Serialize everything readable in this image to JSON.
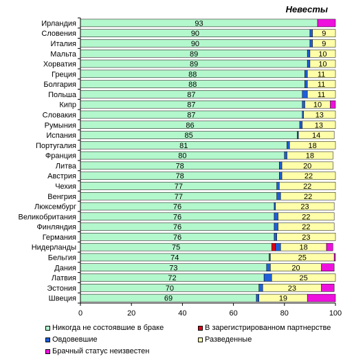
{
  "chart_data": {
    "type": "bar",
    "orientation": "horizontal",
    "stacked": true,
    "title": "Невесты",
    "xlim": [
      0,
      100
    ],
    "xticks": [
      0,
      20,
      40,
      60,
      80,
      100
    ],
    "grid": false,
    "legend_position": "bottom",
    "categories": [
      "Ирландия",
      "Словения",
      "Италия",
      "Мальта",
      "Хорватия",
      "Греция",
      "Болгария",
      "Польша",
      "Кипр",
      "Словакия",
      "Румыния",
      "Испания",
      "Португалия",
      "Франция",
      "Литва",
      "Австрия",
      "Чехия",
      "Венгрия",
      "Люксембург",
      "Великобритания",
      "Финляндия",
      "Германия",
      "Нидерланды",
      "Бельгия",
      "Дания",
      "Латвия",
      "Эстония",
      "Швеция"
    ],
    "series": [
      {
        "name": "Никогда не состоявшие в браке",
        "color": "#b3f7cc",
        "values": [
          93,
          90,
          90,
          89,
          89,
          88,
          88,
          87,
          87,
          87,
          86,
          85,
          81,
          80,
          78,
          78,
          77,
          77,
          76,
          76,
          76,
          76,
          75,
          74,
          73,
          72,
          70,
          69
        ],
        "labels": [
          "93",
          "90",
          "90",
          "89",
          "89",
          "88",
          "88",
          "87",
          "87",
          "87",
          "86",
          "85",
          "81",
          "80",
          "78",
          "78",
          "77",
          "77",
          "76",
          "76",
          "76",
          "76",
          "75",
          "74",
          "73",
          "72",
          "70",
          "69"
        ]
      },
      {
        "name": "В зарегистрированном партнерстве",
        "color": "#e0001b",
        "values": [
          0,
          0,
          0,
          0,
          0,
          0,
          0,
          0,
          0,
          0,
          0,
          0,
          0,
          0,
          0,
          0,
          0,
          0,
          0,
          0,
          0,
          0,
          1.5,
          0,
          0,
          0,
          0,
          0
        ],
        "labels": [
          "",
          "",
          "",
          "",
          "",
          "",
          "",
          "",
          "",
          "",
          "",
          "",
          "",
          "",
          "",
          "",
          "",
          "",
          "",
          "",
          "",
          "",
          "",
          "",
          "",
          "",
          "",
          ""
        ]
      },
      {
        "name": "Овдовевшие",
        "color": "#1f5fdb",
        "values": [
          0,
          1,
          1,
          1,
          1,
          1,
          1,
          2,
          1,
          0.5,
          1,
          0.5,
          1,
          1,
          1,
          1,
          1,
          1.5,
          0.5,
          1.5,
          1.5,
          1,
          2,
          0.5,
          1.5,
          3,
          1.5,
          1
        ],
        "labels": [
          "",
          "",
          "",
          "",
          "",
          "",
          "",
          "",
          "",
          "",
          "",
          "",
          "",
          "",
          "",
          "",
          "",
          "",
          "",
          "",
          "",
          "",
          "",
          "",
          "",
          "",
          "",
          ""
        ]
      },
      {
        "name": "Разведенные",
        "color": "#ffffaa",
        "values": [
          0,
          9,
          9,
          10,
          10,
          11,
          11,
          11,
          10,
          13,
          13,
          14,
          18,
          18,
          20,
          22,
          22,
          22,
          23,
          22,
          22,
          23,
          18,
          25,
          20,
          25,
          23,
          19
        ],
        "labels": [
          "",
          "9",
          "9",
          "10",
          "10",
          "11",
          "11",
          "11",
          "10",
          "13",
          "13",
          "14",
          "18",
          "18",
          "20",
          "22",
          "22",
          "22",
          "23",
          "22",
          "22",
          "23",
          "18",
          "25",
          "20",
          "25",
          "23",
          "19"
        ]
      },
      {
        "name": "Брачный статус неизвестен",
        "color": "#ee11dd",
        "values": [
          7,
          0,
          0,
          0,
          0,
          0,
          0,
          0,
          2,
          0,
          0,
          0,
          0,
          0,
          0,
          0,
          0,
          0,
          0,
          0,
          0,
          0,
          2.5,
          0.5,
          5,
          0,
          5,
          12
        ],
        "labels": [
          "",
          "",
          "",
          "",
          "",
          "",
          "",
          "",
          "",
          "",
          "",
          "",
          "",
          "",
          "",
          "",
          "",
          "",
          "",
          "",
          "",
          "",
          "",
          "",
          "",
          "",
          "",
          ""
        ]
      }
    ]
  }
}
